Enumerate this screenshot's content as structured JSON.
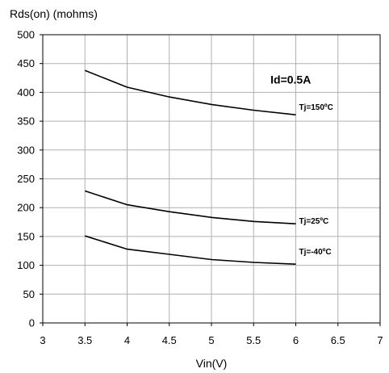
{
  "chart_data": {
    "type": "line",
    "ylabel": "Rds(on) (mohms)",
    "xlabel": "Vin(V)",
    "xlim": [
      3,
      7
    ],
    "ylim": [
      0,
      500
    ],
    "xticks": [
      "3",
      "3.5",
      "4",
      "4.5",
      "5",
      "5.5",
      "6",
      "6.5",
      "7"
    ],
    "yticks": [
      "0",
      "50",
      "100",
      "150",
      "200",
      "250",
      "300",
      "350",
      "400",
      "450",
      "500"
    ],
    "grid": true,
    "annotation": "Id=0.5A",
    "series": [
      {
        "name": "Tj=150ºC",
        "x": [
          3.5,
          4,
          4.5,
          5,
          5.5,
          6
        ],
        "y": [
          438,
          409,
          392,
          379,
          369,
          361
        ]
      },
      {
        "name": "Tj=25ºC",
        "x": [
          3.5,
          4,
          4.5,
          5,
          5.5,
          6
        ],
        "y": [
          229,
          205,
          193,
          183,
          176,
          172
        ]
      },
      {
        "name": "Tj=-40ºC",
        "x": [
          3.5,
          4,
          4.5,
          5,
          5.5,
          6
        ],
        "y": [
          151,
          128,
          119,
          110,
          105,
          102
        ]
      }
    ]
  }
}
